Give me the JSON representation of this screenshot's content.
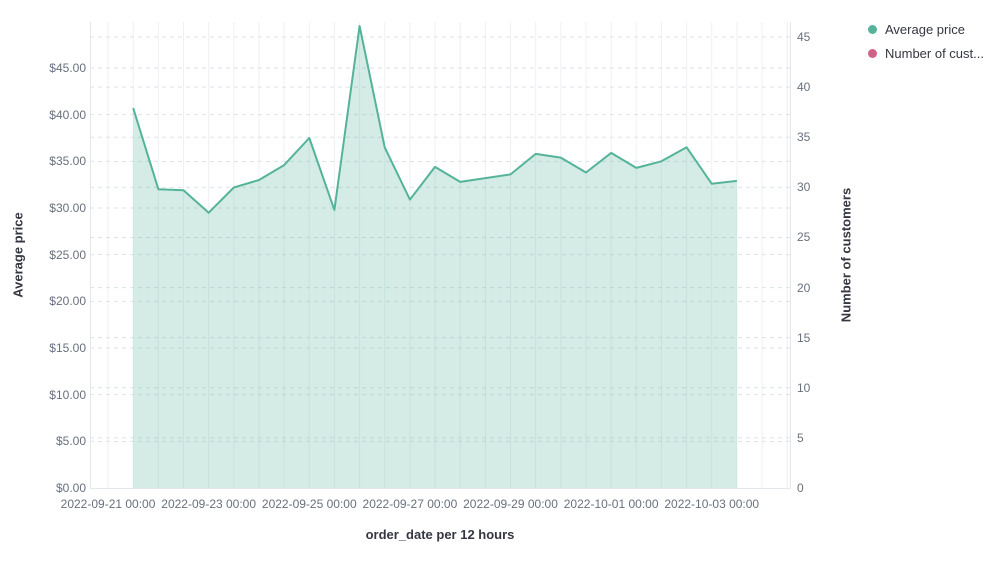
{
  "chart_data": {
    "type": "area",
    "title": "",
    "x": [
      "2022-09-21 12:00",
      "2022-09-22 00:00",
      "2022-09-22 12:00",
      "2022-09-23 00:00",
      "2022-09-23 12:00",
      "2022-09-24 00:00",
      "2022-09-24 12:00",
      "2022-09-25 00:00",
      "2022-09-25 12:00",
      "2022-09-26 00:00",
      "2022-09-26 12:00",
      "2022-09-27 00:00",
      "2022-09-27 12:00",
      "2022-09-28 00:00",
      "2022-09-28 12:00",
      "2022-09-29 00:00",
      "2022-09-29 12:00",
      "2022-09-30 00:00",
      "2022-09-30 12:00",
      "2022-10-01 00:00",
      "2022-10-01 12:00",
      "2022-10-02 00:00",
      "2022-10-02 12:00",
      "2022-10-03 00:00",
      "2022-10-03 12:00"
    ],
    "series": [
      {
        "name": "Average price",
        "color": "#54b399",
        "fill_opacity": 0.25,
        "axis": "left",
        "values": [
          40.7,
          32.0,
          31.9,
          29.5,
          32.2,
          33.0,
          34.6,
          37.5,
          29.8,
          49.5,
          36.5,
          30.9,
          34.4,
          32.8,
          33.2,
          33.6,
          35.8,
          35.4,
          33.8,
          35.9,
          34.3,
          35.0,
          36.5,
          32.6,
          32.9
        ]
      }
    ],
    "legend": [
      {
        "label": "Average price",
        "color": "#54b399"
      },
      {
        "label": "Number of cust...",
        "color": "#d36086"
      }
    ],
    "left_axis": {
      "title": "Average price",
      "tick_values": [
        0,
        5,
        10,
        15,
        20,
        25,
        30,
        35,
        40,
        45
      ],
      "tick_labels": [
        "$0.00",
        "$5.00",
        "$10.00",
        "$15.00",
        "$20.00",
        "$25.00",
        "$30.00",
        "$35.00",
        "$40.00",
        "$45.00"
      ],
      "range": [
        0,
        49.93
      ]
    },
    "right_axis": {
      "title": "Number of customers",
      "tick_values": [
        0,
        5,
        10,
        15,
        20,
        25,
        30,
        35,
        40,
        45
      ],
      "tick_labels": [
        "0",
        "5",
        "10",
        "15",
        "20",
        "25",
        "30",
        "35",
        "40",
        "45"
      ],
      "range": [
        0,
        46.5
      ]
    },
    "x_axis": {
      "title": "order_date per 12 hours",
      "tick_labels": [
        "2022-09-21 00:00",
        "2022-09-23 00:00",
        "2022-09-25 00:00",
        "2022-09-27 00:00",
        "2022-09-29 00:00",
        "2022-10-01 00:00",
        "2022-10-03 00:00"
      ],
      "grid": true
    },
    "colors": {
      "grid_dashed": "#dde2ea",
      "grid_vertical": "#eef0f4",
      "axis_line": "#e3e7ee",
      "tick_text": "#69707d",
      "title_text": "#343741"
    }
  }
}
